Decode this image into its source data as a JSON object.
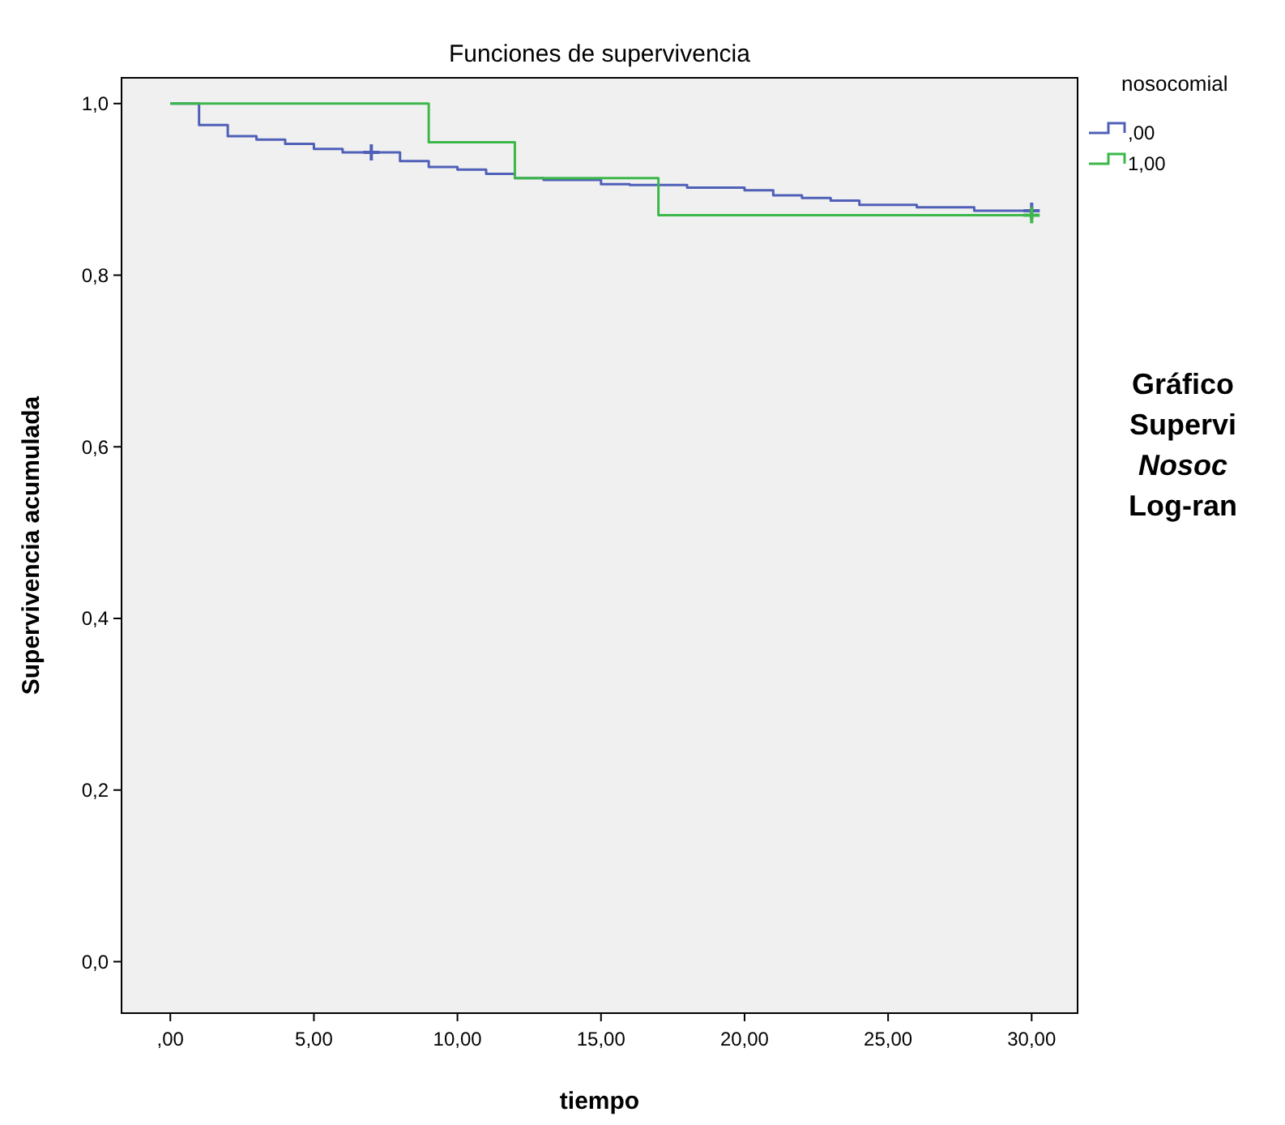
{
  "chart_data": {
    "type": "step",
    "title": "Funciones de supervivencia",
    "xlabel": "tiempo",
    "ylabel": "Supervivencia acumulada",
    "legend_title": "nosocomial",
    "legend": "top right",
    "grid": false,
    "xlim": [
      -1.7,
      31.6
    ],
    "ylim": [
      -0.06,
      1.03
    ],
    "xticks": [
      {
        "value": 0,
        "label": ",00"
      },
      {
        "value": 5,
        "label": "5,00"
      },
      {
        "value": 10,
        "label": "10,00"
      },
      {
        "value": 15,
        "label": "15,00"
      },
      {
        "value": 20,
        "label": "20,00"
      },
      {
        "value": 25,
        "label": "25,00"
      },
      {
        "value": 30,
        "label": "30,00"
      }
    ],
    "yticks": [
      {
        "value": 0,
        "label": "0,0"
      },
      {
        "value": 0.2,
        "label": "0,2"
      },
      {
        "value": 0.4,
        "label": "0,4"
      },
      {
        "value": 0.6,
        "label": "0,6"
      },
      {
        "value": 0.8,
        "label": "0,8"
      },
      {
        "value": 1,
        "label": "1,0"
      }
    ],
    "series": [
      {
        "name": ",00",
        "color": "#5060b8",
        "x": [
          0,
          1,
          2,
          3,
          4,
          5,
          6,
          8,
          9,
          10,
          11,
          12,
          13,
          15,
          16,
          18,
          20,
          21,
          22,
          23,
          24,
          26,
          28,
          30
        ],
        "values": [
          1,
          0.975,
          0.962,
          0.958,
          0.953,
          0.947,
          0.943,
          0.933,
          0.926,
          0.923,
          0.918,
          0.913,
          0.911,
          0.906,
          0.905,
          0.902,
          0.899,
          0.893,
          0.89,
          0.887,
          0.882,
          0.879,
          0.875,
          0.875
        ]
      },
      {
        "name": "1,00",
        "color": "#3cb84a",
        "x": [
          0,
          9,
          12,
          17,
          30
        ],
        "values": [
          1,
          0.955,
          0.913,
          0.87,
          0.87
        ]
      },
      {
        "type": "scatter",
        "marker": "cross",
        "color": "#5060b8",
        "x": [
          7,
          30
        ],
        "values": [
          0.943,
          0.875
        ]
      },
      {
        "type": "scatter",
        "marker": "cross",
        "color": "#3cb84a",
        "x": [
          30
        ],
        "values": [
          0.87
        ]
      }
    ],
    "annotations": [
      "Gráfico",
      "Supervi",
      "Nosoc",
      "Log-ran"
    ]
  }
}
